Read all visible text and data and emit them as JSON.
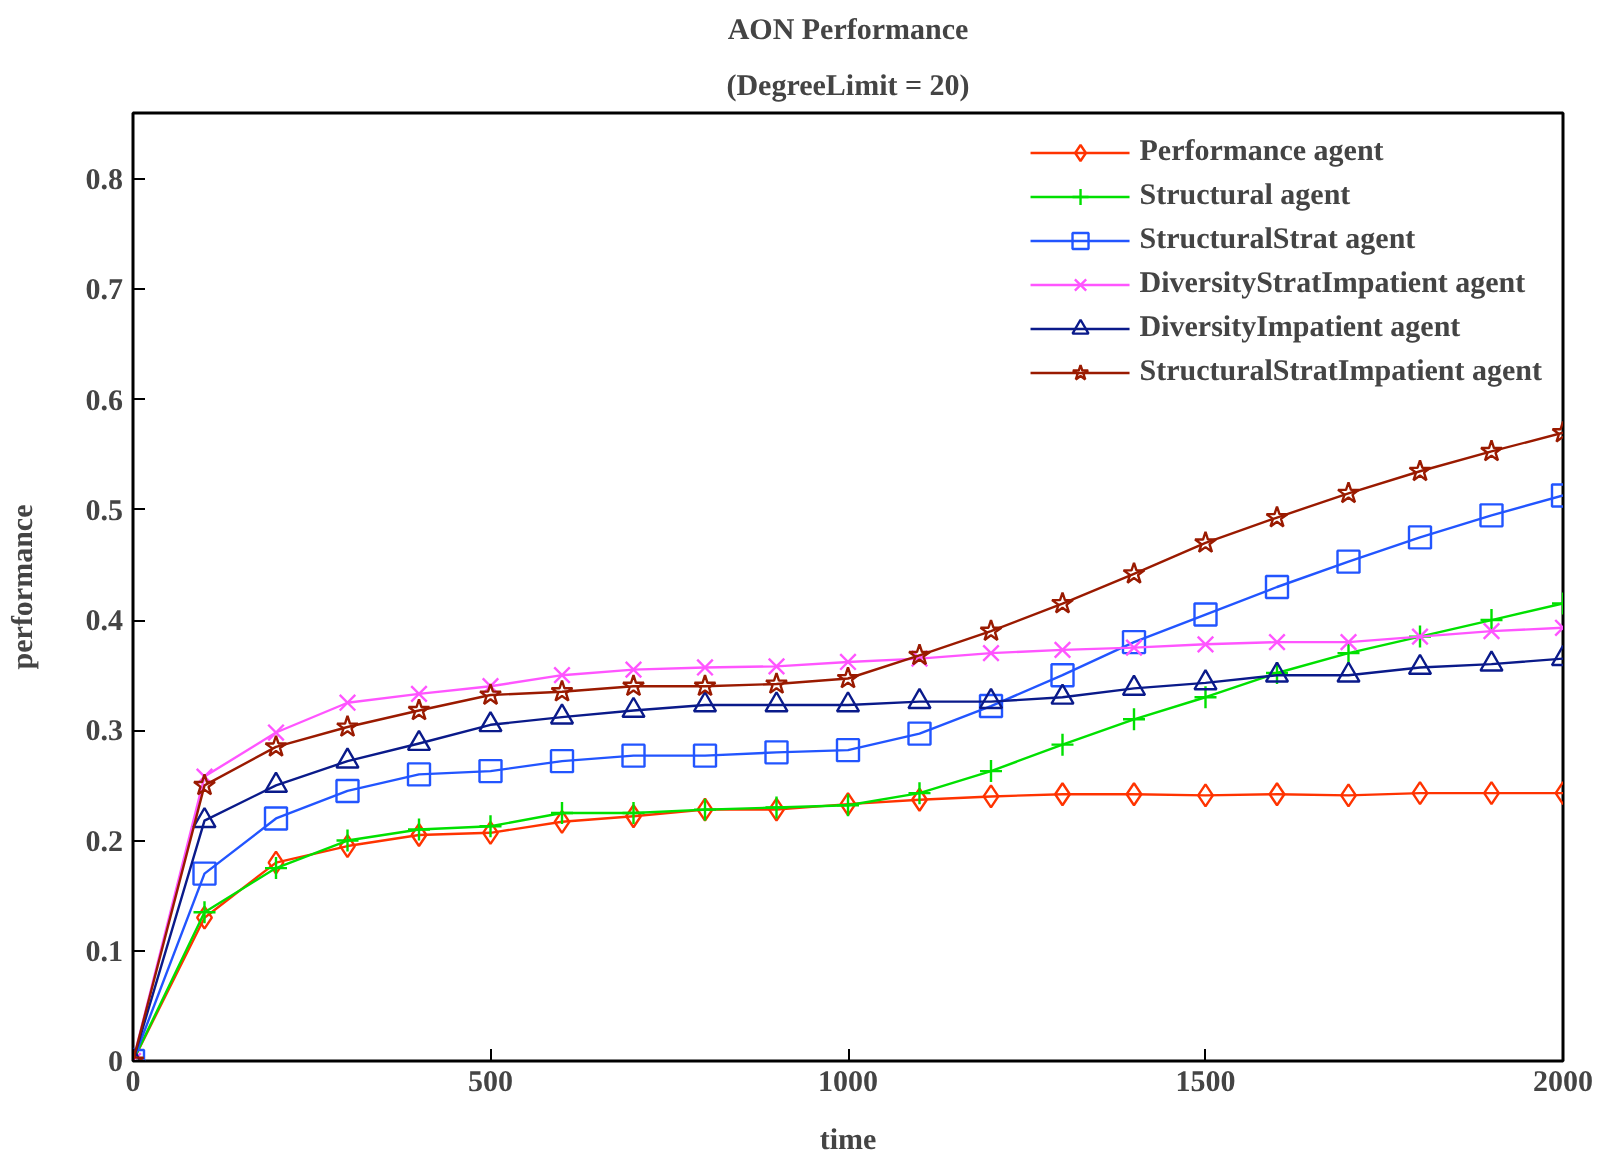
{
  "chart_data": {
    "type": "line",
    "title": "AON Performance",
    "subtitle": "(DegreeLimit = 20)",
    "xlabel": "time",
    "ylabel": "performance",
    "x": [
      0,
      100,
      200,
      300,
      400,
      500,
      600,
      700,
      800,
      900,
      1000,
      1100,
      1200,
      1300,
      1400,
      1500,
      1600,
      1700,
      1800,
      1900,
      2000
    ],
    "series": [
      {
        "name": "Performance agent",
        "color": "#ff3300",
        "marker": "diamond",
        "values": [
          0,
          0.13,
          0.18,
          0.195,
          0.205,
          0.207,
          0.217,
          0.222,
          0.228,
          0.228,
          0.233,
          0.237,
          0.24,
          0.242,
          0.242,
          0.241,
          0.242,
          0.241,
          0.243,
          0.243,
          0.243
        ]
      },
      {
        "name": "Structural agent",
        "color": "#00e000",
        "marker": "cross",
        "values": [
          0,
          0.135,
          0.175,
          0.2,
          0.21,
          0.213,
          0.225,
          0.225,
          0.228,
          0.23,
          0.232,
          0.243,
          0.263,
          0.287,
          0.31,
          0.33,
          0.352,
          0.37,
          0.385,
          0.4,
          0.415
        ]
      },
      {
        "name": "StructuralStrat agent",
        "color": "#2255ff",
        "marker": "square",
        "values": [
          0,
          0.17,
          0.22,
          0.245,
          0.26,
          0.263,
          0.272,
          0.277,
          0.277,
          0.28,
          0.282,
          0.297,
          0.322,
          0.35,
          0.38,
          0.405,
          0.43,
          0.453,
          0.475,
          0.495,
          0.513
        ]
      },
      {
        "name": "DiversityStratImpatient agent",
        "color": "#ff55ff",
        "marker": "x",
        "values": [
          0,
          0.258,
          0.298,
          0.325,
          0.333,
          0.34,
          0.35,
          0.355,
          0.357,
          0.358,
          0.362,
          0.365,
          0.37,
          0.373,
          0.375,
          0.378,
          0.38,
          0.38,
          0.385,
          0.39,
          0.393
        ]
      },
      {
        "name": "DiversityImpatient agent",
        "color": "#0a1a8a",
        "marker": "triangle",
        "values": [
          0,
          0.218,
          0.25,
          0.272,
          0.288,
          0.305,
          0.312,
          0.318,
          0.323,
          0.323,
          0.323,
          0.326,
          0.326,
          0.33,
          0.338,
          0.343,
          0.35,
          0.35,
          0.357,
          0.36,
          0.365
        ]
      },
      {
        "name": "StructuralStratImpatient agent",
        "color": "#9a1a00",
        "marker": "star",
        "values": [
          0,
          0.25,
          0.285,
          0.303,
          0.318,
          0.332,
          0.335,
          0.34,
          0.34,
          0.342,
          0.347,
          0.368,
          0.39,
          0.415,
          0.442,
          0.47,
          0.493,
          0.515,
          0.535,
          0.553,
          0.57
        ]
      }
    ],
    "xlim": [
      0,
      2000
    ],
    "ylim": [
      0,
      0.86
    ],
    "xticks": [
      0,
      500,
      1000,
      1500,
      2000
    ],
    "yticks": [
      0,
      0.1,
      0.2,
      0.3,
      0.4,
      0.5,
      0.6,
      0.7,
      0.8
    ],
    "grid": false,
    "legend": "top right",
    "line_style": "solid"
  }
}
